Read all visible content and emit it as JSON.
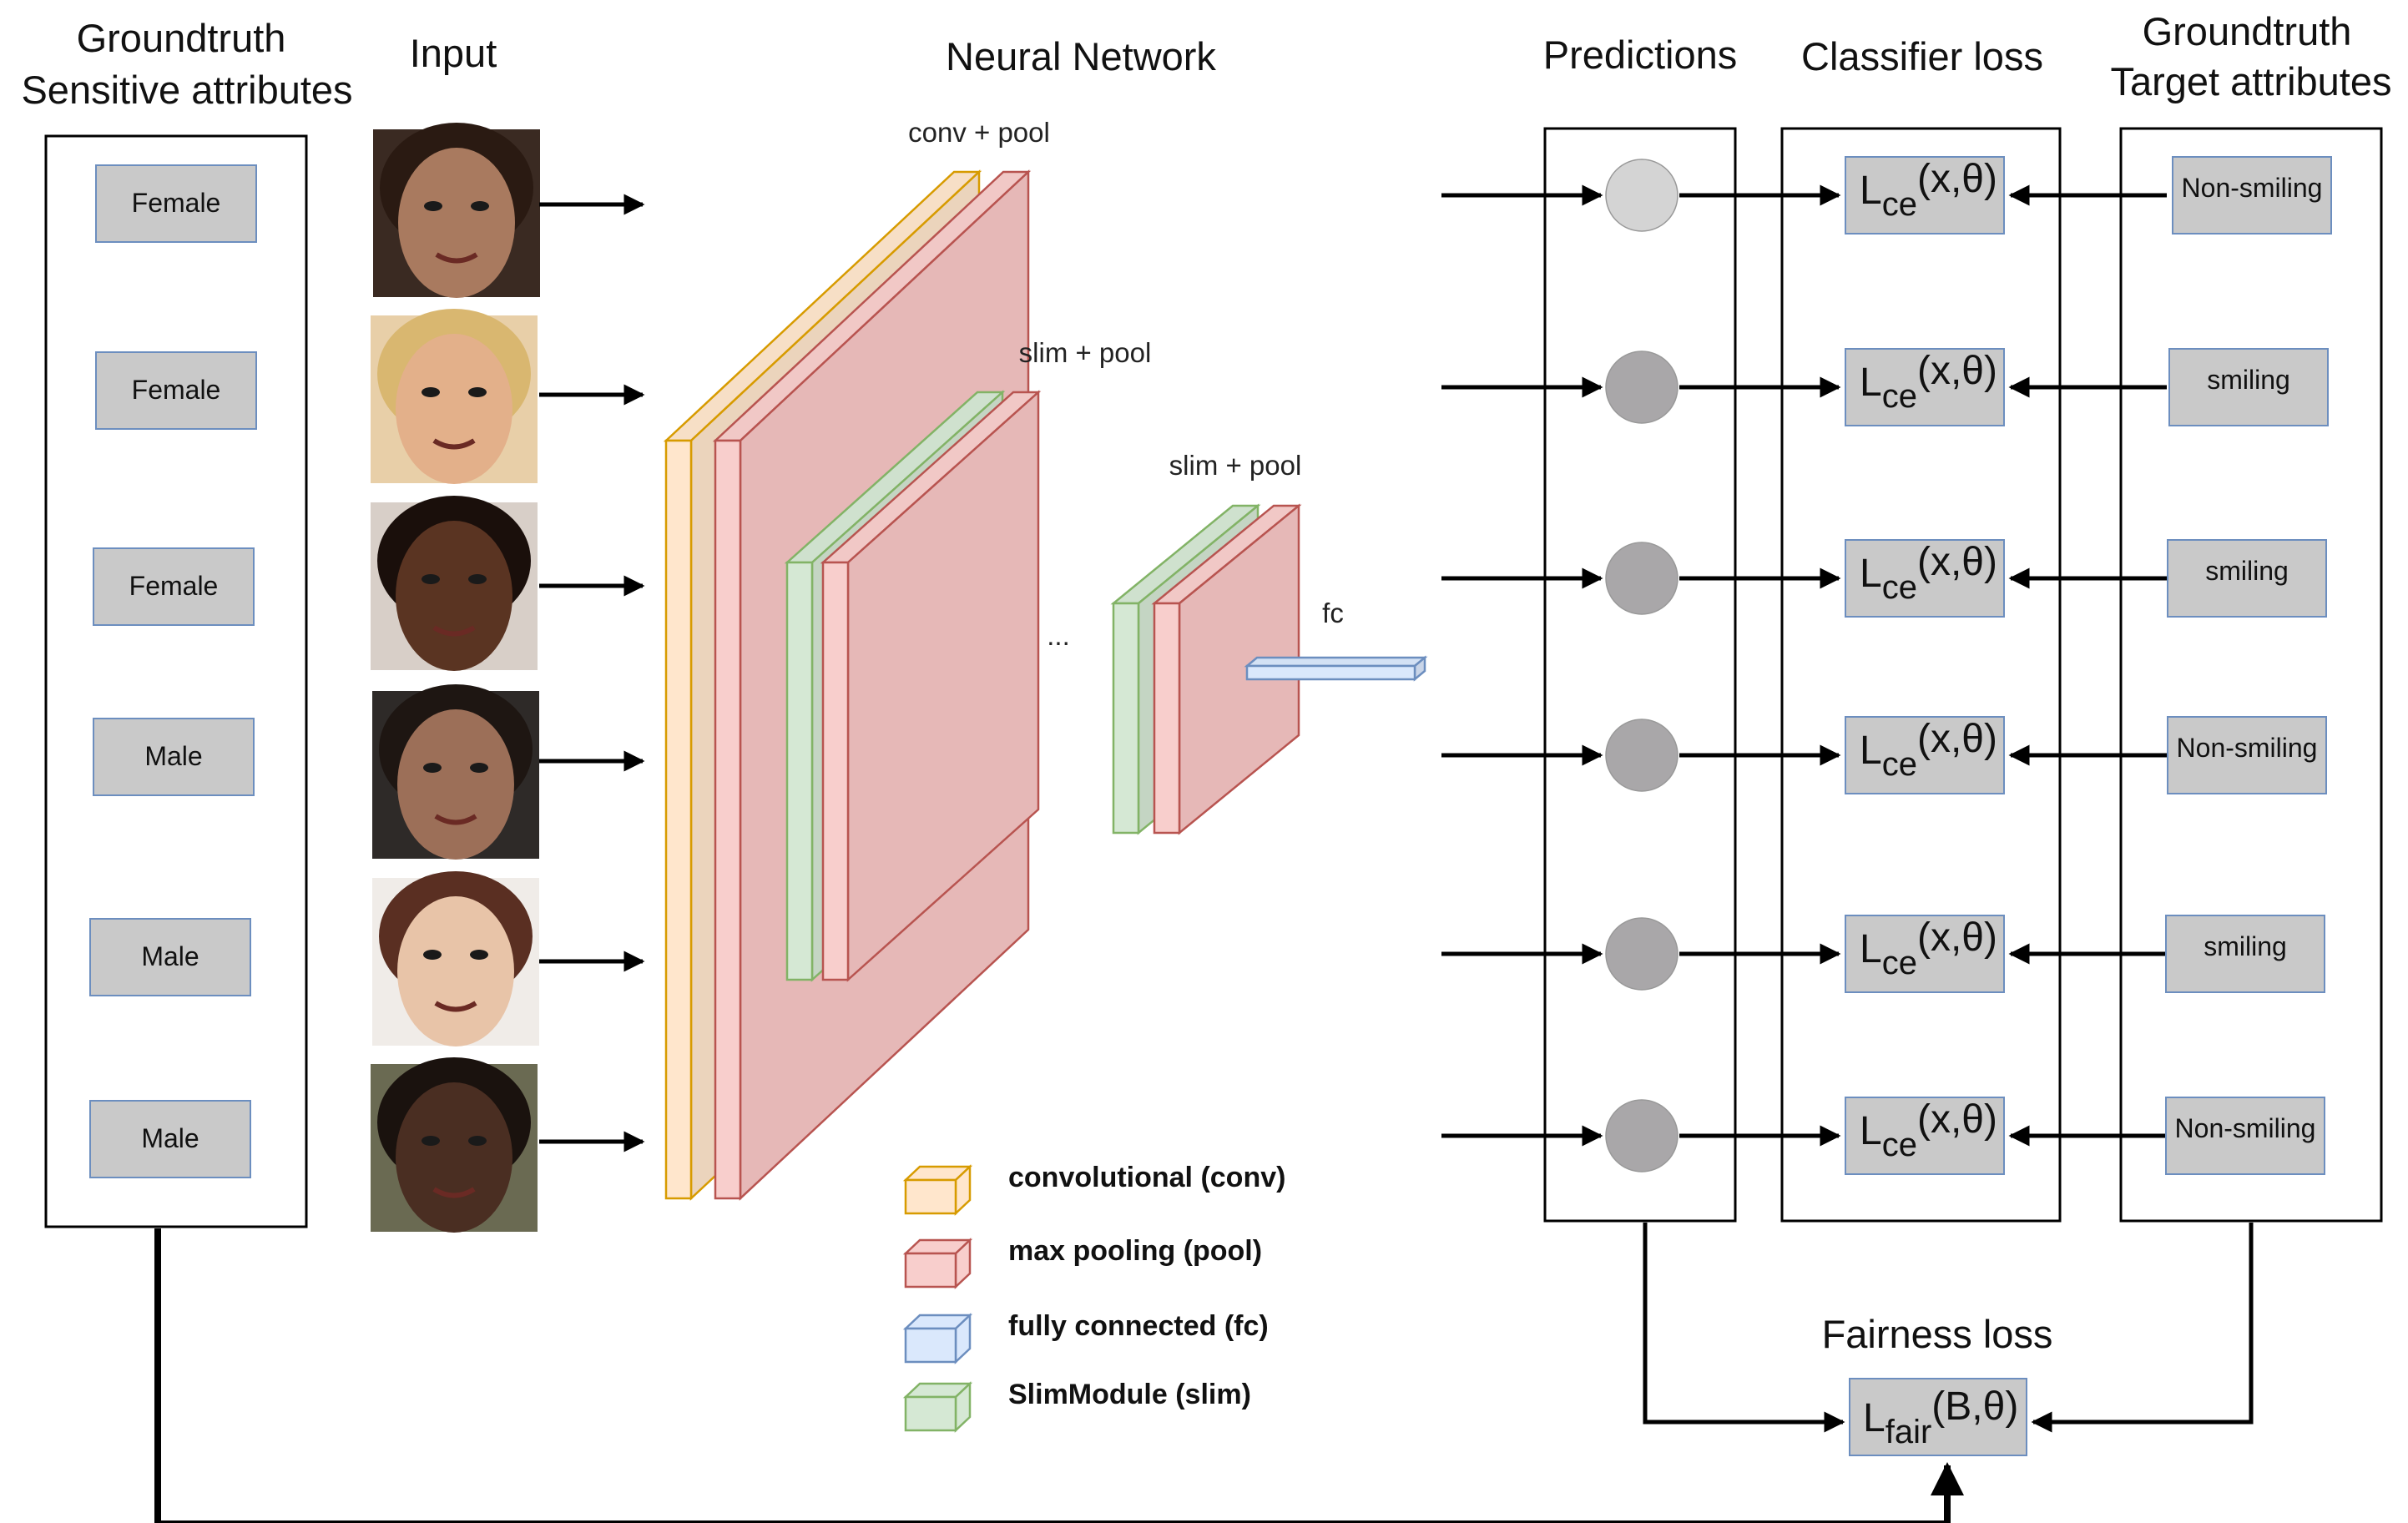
{
  "headers": {
    "sensitive": [
      "Groundtruth",
      "Sensitive attributes"
    ],
    "input": "Input",
    "network": "Neural Network",
    "predictions": "Predictions",
    "classifier_loss": "Classifier loss",
    "target": [
      "Groundtruth",
      "Target attributes"
    ],
    "fairness_loss": "Fairness loss"
  },
  "network_labels": {
    "conv_pool": "conv + pool",
    "slim_pool_1": "slim + pool",
    "slim_pool_2": "slim + pool",
    "ellipsis": "...",
    "fc": "fc"
  },
  "rows": [
    {
      "sensitive": "Female",
      "target": "Non-smiling",
      "prediction_color": "#d4d4d4",
      "face_skin": "#a97a5f",
      "face_hair": "#2a1a12",
      "face_bg": "#3a2a22"
    },
    {
      "sensitive": "Female",
      "target": "smiling",
      "prediction_color": "#a9a7a9",
      "face_skin": "#e3b08a",
      "face_hair": "#d9b770",
      "face_bg": "#e8cfa8"
    },
    {
      "sensitive": "Female",
      "target": "smiling",
      "prediction_color": "#a9a7a9",
      "face_skin": "#5a3422",
      "face_hair": "#1a0f0b",
      "face_bg": "#d8cfc8"
    },
    {
      "sensitive": "Male",
      "target": "Non-smiling",
      "prediction_color": "#a9a7a9",
      "face_skin": "#9c6f58",
      "face_hair": "#1e1612",
      "face_bg": "#2e2a28"
    },
    {
      "sensitive": "Male",
      "target": "smiling",
      "prediction_color": "#a9a7a9",
      "face_skin": "#e8c4a8",
      "face_hair": "#5a2f22",
      "face_bg": "#f0ece8"
    },
    {
      "sensitive": "Male",
      "target": "Non-smiling",
      "prediction_color": "#a9a7a9",
      "face_skin": "#4a2e22",
      "face_hair": "#1a120e",
      "face_bg": "#6a6a52"
    }
  ],
  "classifier_loss": {
    "main": "L",
    "sub": "ce",
    "args": "(x,θ)"
  },
  "fairness_loss": {
    "main": "L",
    "sub": "fair",
    "args": "(B,θ)"
  },
  "legend": [
    {
      "label": "convolutional (conv)",
      "fill": "#ffe6cc",
      "stroke": "#d79b00"
    },
    {
      "label": "max pooling (pool)",
      "fill": "#f8cecc",
      "stroke": "#b85450"
    },
    {
      "label": "fully connected (fc)",
      "fill": "#dae8fc",
      "stroke": "#6c8ebf"
    },
    {
      "label": "SlimModule (slim)",
      "fill": "#d5e8d4",
      "stroke": "#82b366"
    }
  ],
  "colors": {
    "conv": "#ffe6cc",
    "conv_stroke": "#d79b00",
    "pool": "#e6b8b7",
    "pool_front": "#f8cecc",
    "pool_stroke": "#b85450",
    "slim": "#d5e8d4",
    "slim_stroke": "#82b366",
    "fc": "#dae8fc",
    "fc_stroke": "#6c8ebf",
    "box": "#c9c9c9",
    "box_stroke": "#6c8ebf"
  }
}
